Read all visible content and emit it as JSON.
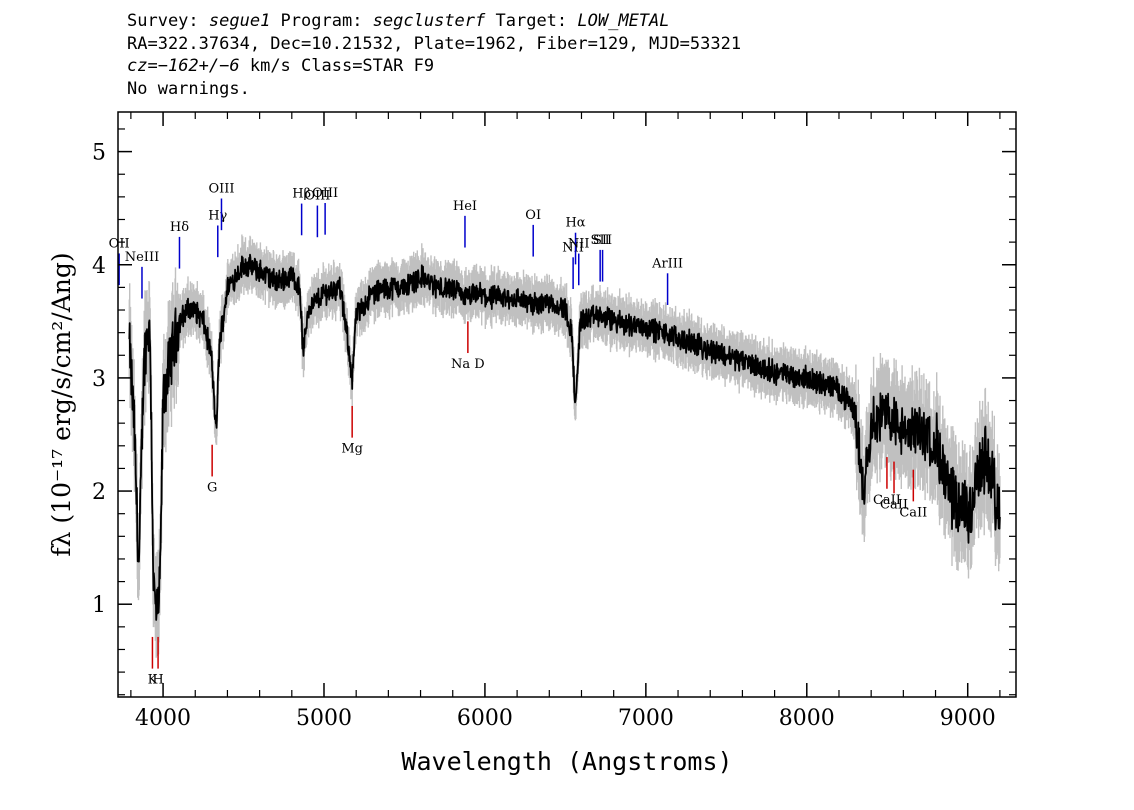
{
  "header": {
    "line1": {
      "survey_label": "Survey: ",
      "survey": "segue1",
      "program_label": " Program: ",
      "program": "segclusterf",
      "target_label": " Target: ",
      "target": "LOW_METAL"
    },
    "line2": "RA=322.37634, Dec=10.21532, Plate=1962, Fiber=129, MJD=53321",
    "line3": {
      "cz_label": "cz=",
      "cz": "−162+/−6",
      "rest": " km/s Class=STAR F9"
    },
    "line4": "No warnings."
  },
  "colors": {
    "flux": "#000000",
    "error_band": "#c0c0c0",
    "emission": "#0000cc",
    "absorption": "#cc0000"
  },
  "chart_data": {
    "type": "line",
    "xlabel": "Wavelength (Angstroms)",
    "ylabel": "fλ (10⁻¹⁷ erg/s/cm²/Ang)",
    "xlim": [
      3720,
      9300
    ],
    "ylim": [
      0.18,
      5.35
    ],
    "xticks": [
      "4000",
      "5000",
      "6000",
      "7000",
      "8000",
      "9000"
    ],
    "yticks": [
      "1",
      "2",
      "3",
      "4",
      "5"
    ],
    "spectrum_knots": {
      "x": [
        3790,
        3820,
        3850,
        3880,
        3900,
        3920,
        3940,
        3960,
        3980,
        4000,
        4050,
        4100,
        4150,
        4200,
        4250,
        4300,
        4330,
        4350,
        4400,
        4450,
        4500,
        4600,
        4700,
        4800,
        4850,
        4870,
        4900,
        5000,
        5100,
        5150,
        5175,
        5200,
        5300,
        5400,
        5500,
        5600,
        5700,
        5800,
        5890,
        5950,
        6000,
        6100,
        6200,
        6300,
        6400,
        6500,
        6540,
        6563,
        6590,
        6700,
        6800,
        7000,
        7200,
        7400,
        7600,
        7800,
        8000,
        8200,
        8300,
        8350,
        8400,
        8500,
        8600,
        8700,
        8800,
        8900,
        9000,
        9100,
        9150,
        9200
      ],
      "y": [
        3.3,
        2.6,
        1.3,
        3.1,
        3.4,
        3.4,
        1.2,
        0.9,
        1.1,
        2.8,
        3.2,
        3.5,
        3.6,
        3.6,
        3.5,
        3.2,
        2.5,
        3.3,
        3.8,
        3.9,
        4.0,
        3.95,
        3.85,
        3.9,
        3.8,
        3.2,
        3.6,
        3.75,
        3.8,
        3.3,
        3.0,
        3.55,
        3.75,
        3.8,
        3.8,
        3.9,
        3.8,
        3.78,
        3.7,
        3.75,
        3.72,
        3.7,
        3.7,
        3.65,
        3.68,
        3.6,
        3.4,
        2.7,
        3.5,
        3.55,
        3.5,
        3.45,
        3.35,
        3.25,
        3.15,
        3.05,
        3.0,
        2.9,
        2.7,
        2.0,
        2.6,
        2.7,
        2.5,
        2.55,
        2.4,
        1.9,
        1.8,
        2.3,
        2.1,
        1.7
      ]
    },
    "emission_lines": [
      {
        "name": "OII",
        "x": 3727
      },
      {
        "name": "NeIII",
        "x": 3869
      },
      {
        "name": "Hδ",
        "x": 4102
      },
      {
        "name": "Hγ",
        "x": 4340
      },
      {
        "name": "OIII",
        "x": 4363
      },
      {
        "name": "Hβ",
        "x": 4861
      },
      {
        "name": "OIII",
        "x": 4959
      },
      {
        "name": "OIII",
        "x": 5007
      },
      {
        "name": "HeI",
        "x": 5876
      },
      {
        "name": "OI",
        "x": 6300
      },
      {
        "name": "NII",
        "x": 6548
      },
      {
        "name": "Hα",
        "x": 6563
      },
      {
        "name": "NII",
        "x": 6583
      },
      {
        "name": "SII",
        "x": 6716
      },
      {
        "name": "SII",
        "x": 6731
      },
      {
        "name": "ArIII",
        "x": 7135
      }
    ],
    "absorption_lines": [
      {
        "name": "K",
        "x": 3934
      },
      {
        "name": "H",
        "x": 3969
      },
      {
        "name": "G",
        "x": 4305
      },
      {
        "name": "Mg",
        "x": 5175
      },
      {
        "name": "Na D",
        "x": 5894
      },
      {
        "name": "CaII",
        "x": 8498
      },
      {
        "name": "CaII",
        "x": 8542
      },
      {
        "name": "CaII",
        "x": 8662
      }
    ]
  }
}
